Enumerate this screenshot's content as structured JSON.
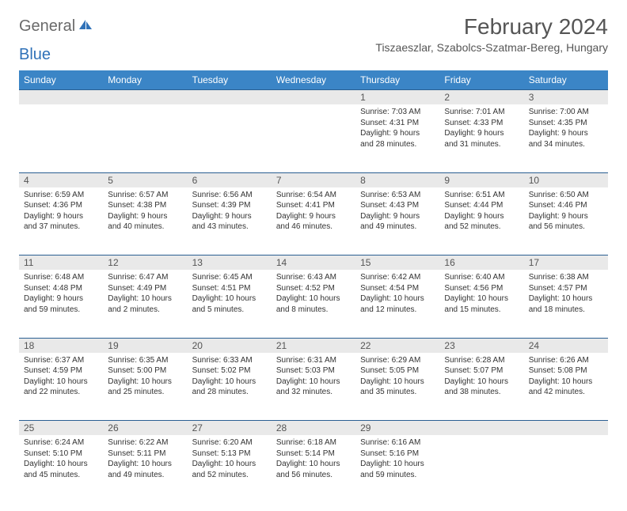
{
  "logo": {
    "text1": "General",
    "text2": "Blue"
  },
  "title": "February 2024",
  "location": "Tiszaeszlar, Szabolcs-Szatmar-Bereg, Hungary",
  "colors": {
    "header_bg": "#3b85c6",
    "header_text": "#ffffff",
    "daynum_bg": "#e9e9e9",
    "rule": "#2a5f92",
    "text": "#333333",
    "logo_gray": "#6a6a6a",
    "logo_blue": "#2f71b8"
  },
  "weekdays": [
    "Sunday",
    "Monday",
    "Tuesday",
    "Wednesday",
    "Thursday",
    "Friday",
    "Saturday"
  ],
  "weeks": [
    [
      null,
      null,
      null,
      null,
      {
        "n": "1",
        "sr": "7:03 AM",
        "ss": "4:31 PM",
        "dl": "9 hours and 28 minutes."
      },
      {
        "n": "2",
        "sr": "7:01 AM",
        "ss": "4:33 PM",
        "dl": "9 hours and 31 minutes."
      },
      {
        "n": "3",
        "sr": "7:00 AM",
        "ss": "4:35 PM",
        "dl": "9 hours and 34 minutes."
      }
    ],
    [
      {
        "n": "4",
        "sr": "6:59 AM",
        "ss": "4:36 PM",
        "dl": "9 hours and 37 minutes."
      },
      {
        "n": "5",
        "sr": "6:57 AM",
        "ss": "4:38 PM",
        "dl": "9 hours and 40 minutes."
      },
      {
        "n": "6",
        "sr": "6:56 AM",
        "ss": "4:39 PM",
        "dl": "9 hours and 43 minutes."
      },
      {
        "n": "7",
        "sr": "6:54 AM",
        "ss": "4:41 PM",
        "dl": "9 hours and 46 minutes."
      },
      {
        "n": "8",
        "sr": "6:53 AM",
        "ss": "4:43 PM",
        "dl": "9 hours and 49 minutes."
      },
      {
        "n": "9",
        "sr": "6:51 AM",
        "ss": "4:44 PM",
        "dl": "9 hours and 52 minutes."
      },
      {
        "n": "10",
        "sr": "6:50 AM",
        "ss": "4:46 PM",
        "dl": "9 hours and 56 minutes."
      }
    ],
    [
      {
        "n": "11",
        "sr": "6:48 AM",
        "ss": "4:48 PM",
        "dl": "9 hours and 59 minutes."
      },
      {
        "n": "12",
        "sr": "6:47 AM",
        "ss": "4:49 PM",
        "dl": "10 hours and 2 minutes."
      },
      {
        "n": "13",
        "sr": "6:45 AM",
        "ss": "4:51 PM",
        "dl": "10 hours and 5 minutes."
      },
      {
        "n": "14",
        "sr": "6:43 AM",
        "ss": "4:52 PM",
        "dl": "10 hours and 8 minutes."
      },
      {
        "n": "15",
        "sr": "6:42 AM",
        "ss": "4:54 PM",
        "dl": "10 hours and 12 minutes."
      },
      {
        "n": "16",
        "sr": "6:40 AM",
        "ss": "4:56 PM",
        "dl": "10 hours and 15 minutes."
      },
      {
        "n": "17",
        "sr": "6:38 AM",
        "ss": "4:57 PM",
        "dl": "10 hours and 18 minutes."
      }
    ],
    [
      {
        "n": "18",
        "sr": "6:37 AM",
        "ss": "4:59 PM",
        "dl": "10 hours and 22 minutes."
      },
      {
        "n": "19",
        "sr": "6:35 AM",
        "ss": "5:00 PM",
        "dl": "10 hours and 25 minutes."
      },
      {
        "n": "20",
        "sr": "6:33 AM",
        "ss": "5:02 PM",
        "dl": "10 hours and 28 minutes."
      },
      {
        "n": "21",
        "sr": "6:31 AM",
        "ss": "5:03 PM",
        "dl": "10 hours and 32 minutes."
      },
      {
        "n": "22",
        "sr": "6:29 AM",
        "ss": "5:05 PM",
        "dl": "10 hours and 35 minutes."
      },
      {
        "n": "23",
        "sr": "6:28 AM",
        "ss": "5:07 PM",
        "dl": "10 hours and 38 minutes."
      },
      {
        "n": "24",
        "sr": "6:26 AM",
        "ss": "5:08 PM",
        "dl": "10 hours and 42 minutes."
      }
    ],
    [
      {
        "n": "25",
        "sr": "6:24 AM",
        "ss": "5:10 PM",
        "dl": "10 hours and 45 minutes."
      },
      {
        "n": "26",
        "sr": "6:22 AM",
        "ss": "5:11 PM",
        "dl": "10 hours and 49 minutes."
      },
      {
        "n": "27",
        "sr": "6:20 AM",
        "ss": "5:13 PM",
        "dl": "10 hours and 52 minutes."
      },
      {
        "n": "28",
        "sr": "6:18 AM",
        "ss": "5:14 PM",
        "dl": "10 hours and 56 minutes."
      },
      {
        "n": "29",
        "sr": "6:16 AM",
        "ss": "5:16 PM",
        "dl": "10 hours and 59 minutes."
      },
      null,
      null
    ]
  ],
  "labels": {
    "sunrise": "Sunrise:",
    "sunset": "Sunset:",
    "daylight": "Daylight:"
  }
}
